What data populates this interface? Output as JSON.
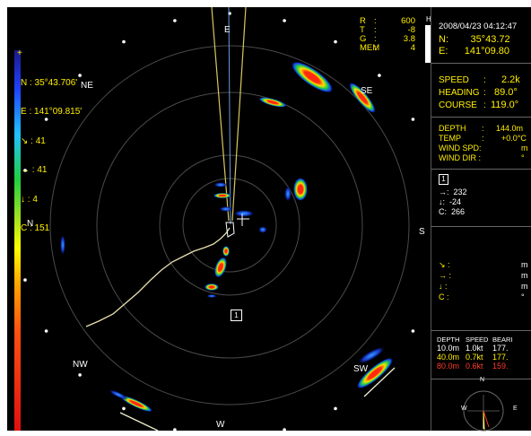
{
  "position_readout": {
    "north": "N : 35°43.706'",
    "east": "E : 141°09.815'",
    "arrow_a": "41",
    "arrow_b": "41",
    "arrow_c": "4",
    "c_value": "C : 151"
  },
  "status_readout": {
    "rows": [
      {
        "k": "R",
        "v": "600"
      },
      {
        "k": "T",
        "v": "-8"
      },
      {
        "k": "G",
        "v": "3.8"
      },
      {
        "k": "MEM",
        "v": "4"
      }
    ],
    "h_label": "H"
  },
  "directions": {
    "n": "N",
    "ne": "NE",
    "e": "E",
    "se": "SE",
    "s": "S",
    "sw": "SW",
    "w": "W",
    "nw": "NW"
  },
  "target_marker": "1",
  "panel": {
    "datetime": "2008/04/23 04:12:47",
    "lat": "N:        35°43.72",
    "lon": "E:      141°09.80",
    "speed_label": "SPEED",
    "speed_value": "2.2k",
    "heading_label": "HEADING",
    "heading_value": "89.0°",
    "course_label": "COURSE",
    "course_value": "119.0°",
    "depth_label": "DEPTH",
    "depth_value": "144.0m",
    "temp_label": "TEMP",
    "temp_value": "+0.0°C",
    "wind_spd_label": "WIND SPD:",
    "wind_spd_value": "m",
    "wind_dir_label": "WIND DIR :",
    "wind_dir_value": "°",
    "target_id": "1",
    "target_a": "232",
    "target_b": "-24",
    "target_c": "C:  266",
    "unit_m1": "m",
    "unit_m2": "m",
    "unit_m3": "m",
    "unit_deg": "°",
    "c_label": "C :",
    "current_table": {
      "headers": [
        "DEPTH",
        "SPEED",
        "BEARI"
      ],
      "rows": [
        {
          "depth": "10.0m",
          "speed": "1.0kt",
          "bearing": "177.",
          "color": "#ffffff"
        },
        {
          "depth": "40.0m",
          "speed": "0.7kt",
          "bearing": "177.",
          "color": "#ffee00"
        },
        {
          "depth": "80.0m",
          "speed": "0.6kt",
          "bearing": "159.",
          "color": "#ff3a2a"
        }
      ]
    },
    "compass": {
      "n": "N",
      "e": "E",
      "w": "W"
    }
  },
  "colors": {
    "background": "#000000",
    "readout_yellow": "#ffee00",
    "track": "#e8e0b0",
    "ring": "#4a4a4a"
  }
}
